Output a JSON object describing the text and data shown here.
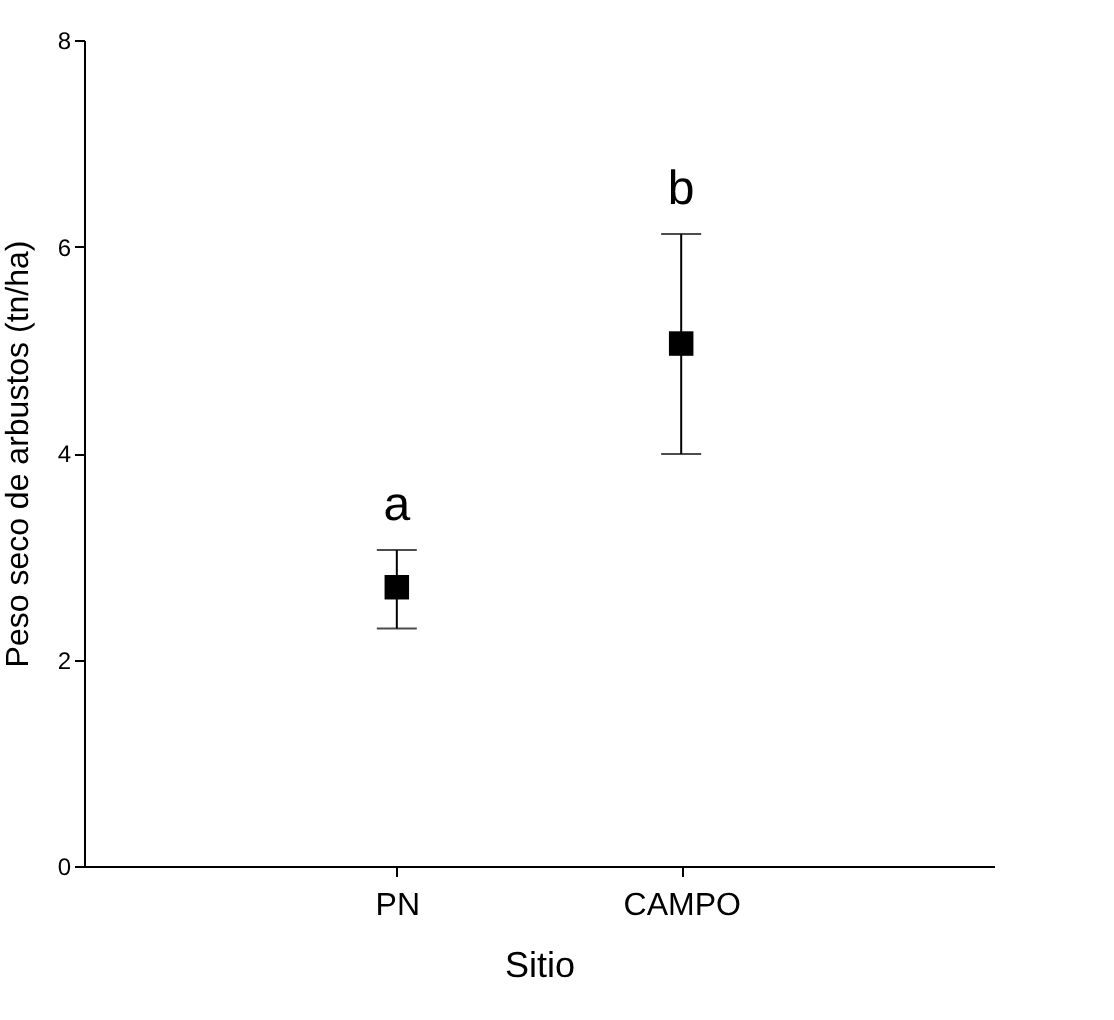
{
  "chart_data": {
    "type": "scatter",
    "xlabel": "Sitio",
    "ylabel": "Peso seco de arbustos (tn/ha)",
    "categories": [
      "PN",
      "CAMPO"
    ],
    "series": [
      {
        "color": "#000000",
        "values": [
          2.7,
          5.06
        ],
        "errors": [
          [
            2.3,
            3.06
          ],
          [
            3.99,
            6.12
          ]
        ]
      }
    ],
    "annotations": [
      "a",
      "b"
    ],
    "ylim": [
      0,
      8
    ],
    "yticks": [
      0,
      2,
      4,
      6,
      8
    ],
    "grid": false,
    "marker": "square"
  }
}
